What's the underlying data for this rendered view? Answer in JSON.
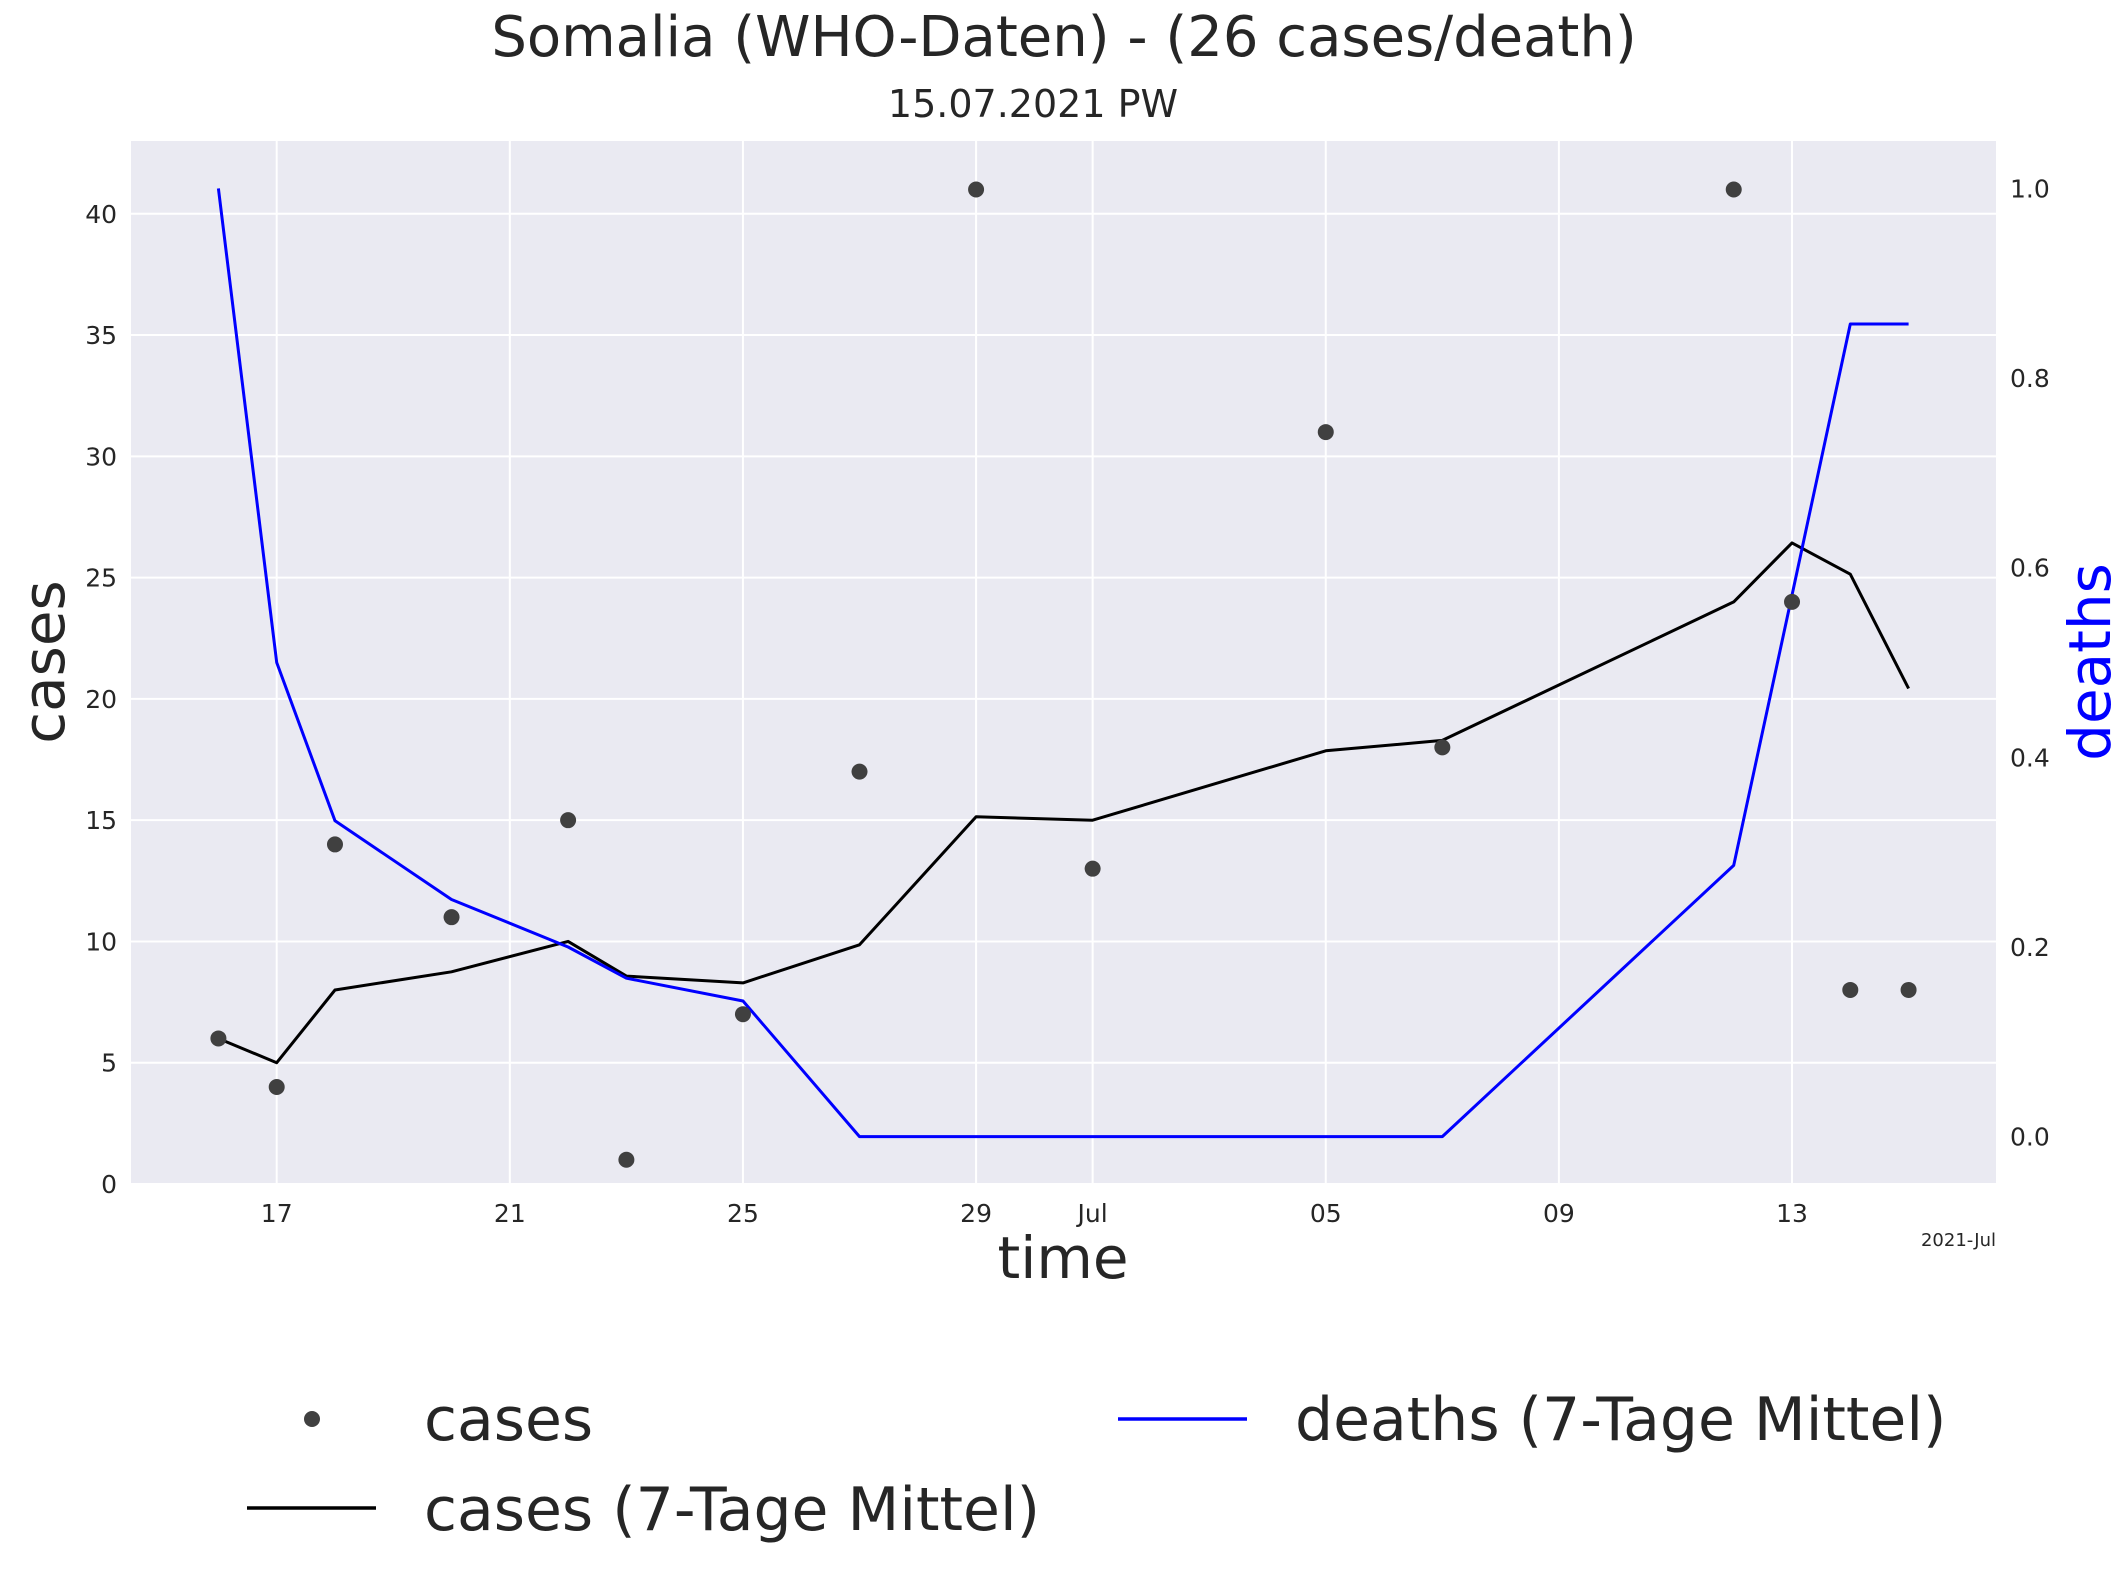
{
  "chart_data": {
    "type": "line",
    "title": "Somalia (WHO-Daten) - (26 cases/death)",
    "subtitle": "15.07.2021 PW",
    "xlabel": "time",
    "ylabel": "cases",
    "y2label": "deaths",
    "x_offset_text": "2021-Jul",
    "x": [
      "2021-06-16",
      "2021-06-17",
      "2021-06-18",
      "2021-06-20",
      "2021-06-22",
      "2021-06-23",
      "2021-06-25",
      "2021-06-27",
      "2021-06-29",
      "2021-07-01",
      "2021-07-05",
      "2021-07-07",
      "2021-07-12",
      "2021-07-13",
      "2021-07-14",
      "2021-07-15"
    ],
    "xlim": [
      "2021-06-14T12:00",
      "2021-07-16T12:00"
    ],
    "x_ticks": [
      {
        "date": "2021-06-17",
        "label": "17"
      },
      {
        "date": "2021-06-21",
        "label": "21"
      },
      {
        "date": "2021-06-25",
        "label": "25"
      },
      {
        "date": "2021-06-29",
        "label": "29"
      },
      {
        "date": "2021-07-01",
        "label": "Jul"
      },
      {
        "date": "2021-07-05",
        "label": "05"
      },
      {
        "date": "2021-07-09",
        "label": "09"
      },
      {
        "date": "2021-07-13",
        "label": "13"
      }
    ],
    "ylim": [
      0,
      43
    ],
    "y_ticks": [
      0,
      5,
      10,
      15,
      20,
      25,
      30,
      35,
      40
    ],
    "y2lim": [
      -0.05,
      1.05
    ],
    "y2_ticks": [
      0.0,
      0.2,
      0.4,
      0.6,
      0.8,
      1.0
    ],
    "y2_tick_labels": [
      "0.0",
      "0.2",
      "0.4",
      "0.6",
      "0.8",
      "1.0"
    ],
    "grid": true,
    "legend_position": "bottom",
    "series": [
      {
        "name": "cases",
        "style": "scatter",
        "axis": "left",
        "color": "#404040",
        "values": [
          6,
          4,
          14,
          11,
          15,
          1,
          7,
          17,
          41,
          13,
          31,
          18,
          41,
          24,
          8,
          8
        ]
      },
      {
        "name": "cases (7-Tage Mittel)",
        "style": "line",
        "axis": "left",
        "color": "#000000",
        "values": [
          6.0,
          5.0,
          8.0,
          8.75,
          10.0,
          8.57,
          8.29,
          9.86,
          15.14,
          15.0,
          17.86,
          18.29,
          24.0,
          26.43,
          25.14,
          20.43
        ]
      },
      {
        "name": "deaths (7-Tage Mittel)",
        "style": "line",
        "axis": "right",
        "color": "#0000ff",
        "values": [
          1.0,
          0.5,
          0.333,
          0.25,
          0.2,
          0.167,
          0.143,
          0.0,
          0.0,
          0.0,
          0.0,
          0.0,
          0.286,
          0.571,
          0.857,
          0.857
        ]
      }
    ]
  }
}
